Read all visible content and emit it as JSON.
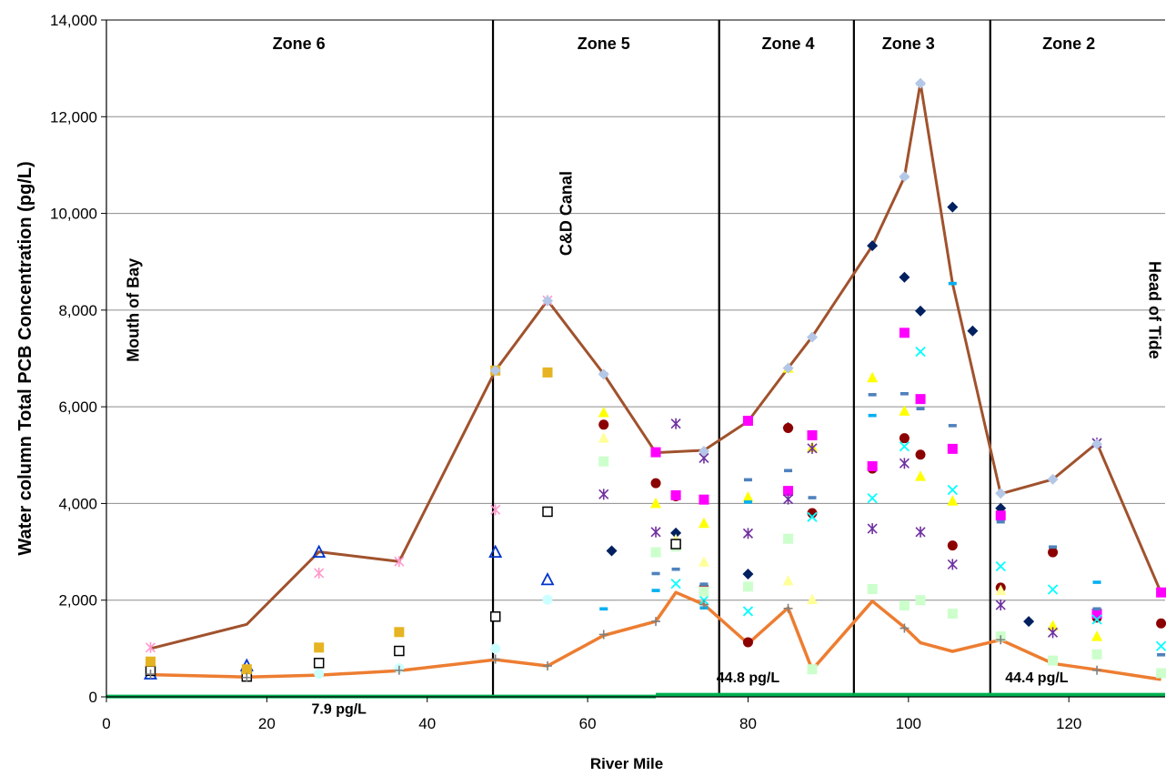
{
  "chart_data": {
    "type": "scatter",
    "xlabel": "River Mile",
    "ylabel": "Water column Total PCB Concentration (pg/L)",
    "xlim": [
      0,
      132
    ],
    "ylim": [
      0,
      14000
    ],
    "x_ticks": [
      "0",
      "20",
      "40",
      "60",
      "80",
      "100",
      "120"
    ],
    "x_tick_values": [
      0,
      20,
      40,
      60,
      80,
      100,
      120
    ],
    "y_ticks": [
      "0",
      "2,000",
      "4,000",
      "6,000",
      "8,000",
      "10,000",
      "12,000",
      "14,000"
    ],
    "y_tick_values": [
      0,
      2000,
      4000,
      6000,
      8000,
      10000,
      12000,
      14000
    ],
    "grid": "horizontal",
    "zones": [
      {
        "label": "Zone 6",
        "x": 24
      },
      {
        "label": "Zone 5",
        "x": 62
      },
      {
        "label": "Zone 4",
        "x": 85
      },
      {
        "label": "Zone 3",
        "x": 100
      },
      {
        "label": "Zone 2",
        "x": 120
      }
    ],
    "zone_boundaries": [
      48.2,
      76.4,
      93.2,
      110.2
    ],
    "annotations": [
      {
        "text": "Mouth of Bay",
        "x": 4,
        "y": 8000,
        "rotate": -90
      },
      {
        "text": "C&D Canal",
        "x": 58,
        "y": 10000,
        "rotate": -90
      },
      {
        "text": "Head of Tide",
        "x": 130,
        "y": 8000,
        "rotate": 90
      },
      {
        "text": "7.9 pg/L",
        "x": 29,
        "y": -350
      },
      {
        "text": "44.8 pg/L",
        "x": 80,
        "y": 300
      },
      {
        "text": "44.4 pg/L",
        "x": 116,
        "y": 300
      }
    ],
    "max_line": {
      "color": "#a0522d",
      "x": [
        5.5,
        17.5,
        26.5,
        36.5,
        48.5,
        55,
        62,
        68.5,
        74.5,
        80,
        85,
        88,
        95.5,
        99.5,
        101.5,
        105.5,
        111.5,
        118,
        123.5,
        131.5
      ],
      "values": [
        1000,
        1500,
        3000,
        2800,
        6750,
        8200,
        6680,
        5050,
        5100,
        5700,
        6800,
        7450,
        9330,
        10750,
        12700,
        8550,
        4200,
        4500,
        5250,
        2150
      ]
    },
    "min_line": {
      "color": "#ed7d31",
      "x": [
        5.5,
        17.5,
        26.5,
        36.5,
        48.5,
        55,
        62,
        68.5,
        71,
        74.5,
        80,
        85,
        88,
        95.5,
        99.5,
        101.5,
        105.5,
        111.5,
        118,
        123.5,
        131.5
      ],
      "values": [
        460,
        410,
        450,
        540,
        770,
        640,
        1270,
        1560,
        2160,
        1910,
        1100,
        1840,
        560,
        1980,
        1440,
        1120,
        940,
        1180,
        690,
        560,
        360
      ]
    },
    "criteria_line": {
      "color": "#00b050",
      "segments": [
        {
          "x": [
            0,
            68.5
          ],
          "values": [
            7.9,
            7.9
          ],
          "label": "7.9 pg/L"
        },
        {
          "x": [
            68.5,
            93.2
          ],
          "values": [
            44.8,
            44.8
          ],
          "label": "44.8 pg/L"
        },
        {
          "x": [
            93.2,
            132
          ],
          "values": [
            44.4,
            44.4
          ],
          "label": "44.4 pg/L"
        }
      ]
    },
    "series": [
      {
        "marker": "diamond",
        "color": "#002060",
        "points": [
          [
            63,
            3020
          ],
          [
            71,
            3390
          ],
          [
            80,
            2540
          ],
          [
            85,
            5570
          ],
          [
            95.5,
            9330
          ],
          [
            99.5,
            8680
          ],
          [
            101.5,
            7980
          ],
          [
            105.5,
            10130
          ],
          [
            108,
            7570
          ],
          [
            111.5,
            3900
          ],
          [
            115,
            1560
          ]
        ]
      },
      {
        "marker": "circle",
        "color": "#8b0000",
        "points": [
          [
            62,
            5630
          ],
          [
            68.5,
            4420
          ],
          [
            71,
            4150
          ],
          [
            74.5,
            2260
          ],
          [
            80,
            1130
          ],
          [
            85,
            5560
          ],
          [
            88,
            3800
          ],
          [
            95.5,
            4720
          ],
          [
            99.5,
            5350
          ],
          [
            101.5,
            5010
          ],
          [
            105.5,
            3130
          ],
          [
            111.5,
            2260
          ],
          [
            118,
            2990
          ],
          [
            123.5,
            1640
          ],
          [
            131.5,
            1520
          ]
        ]
      },
      {
        "marker": "square",
        "color": "#ff00ff",
        "points": [
          [
            68.5,
            5060
          ],
          [
            71,
            4170
          ],
          [
            74.5,
            4080
          ],
          [
            80,
            5710
          ],
          [
            85,
            4260
          ],
          [
            88,
            5410
          ],
          [
            95.5,
            4770
          ],
          [
            99.5,
            7530
          ],
          [
            101.5,
            6160
          ],
          [
            105.5,
            5130
          ],
          [
            111.5,
            3750
          ],
          [
            123.5,
            1720
          ],
          [
            131.5,
            2160
          ]
        ]
      },
      {
        "marker": "triangle",
        "color": "#ffff00",
        "points": [
          [
            62,
            5880
          ],
          [
            68.5,
            4000
          ],
          [
            71,
            3170
          ],
          [
            74.5,
            3590
          ],
          [
            80,
            4130
          ],
          [
            85,
            6800
          ],
          [
            88,
            5160
          ],
          [
            95.5,
            6600
          ],
          [
            99.5,
            5910
          ],
          [
            101.5,
            4560
          ],
          [
            105.5,
            4050
          ],
          [
            118,
            1470
          ],
          [
            123.5,
            1250
          ]
        ]
      },
      {
        "marker": "triangle",
        "color": "#ffff99",
        "points": [
          [
            62,
            5350
          ],
          [
            71,
            3250
          ],
          [
            74.5,
            2790
          ],
          [
            85,
            2400
          ],
          [
            88,
            2010
          ],
          [
            111.5,
            2200
          ]
        ]
      },
      {
        "marker": "star",
        "color": "#7030a0",
        "points": [
          [
            62,
            4190
          ],
          [
            68.5,
            3410
          ],
          [
            71,
            5650
          ],
          [
            74.5,
            4940
          ],
          [
            80,
            3380
          ],
          [
            85,
            4090
          ],
          [
            88,
            5140
          ],
          [
            95.5,
            3480
          ],
          [
            99.5,
            4830
          ],
          [
            101.5,
            3410
          ],
          [
            105.5,
            2740
          ],
          [
            111.5,
            1900
          ],
          [
            118,
            1330
          ],
          [
            123.5,
            5250
          ]
        ]
      },
      {
        "marker": "star",
        "color": "#ff99cc",
        "points": [
          [
            5.5,
            1020
          ],
          [
            26.5,
            2560
          ],
          [
            36.5,
            2800
          ],
          [
            48.5,
            3870
          ],
          [
            55,
            8200
          ]
        ]
      },
      {
        "marker": "x",
        "color": "#00ffff",
        "points": [
          [
            68.5,
            2990
          ],
          [
            71,
            2340
          ],
          [
            74.5,
            2000
          ],
          [
            80,
            1770
          ],
          [
            88,
            3720
          ],
          [
            95.5,
            4110
          ],
          [
            99.5,
            5180
          ],
          [
            101.5,
            7140
          ],
          [
            105.5,
            4280
          ],
          [
            111.5,
            2700
          ],
          [
            118,
            2220
          ],
          [
            123.5,
            1600
          ],
          [
            131.5,
            1050
          ]
        ]
      },
      {
        "marker": "square",
        "color": "#ccffcc",
        "points": [
          [
            62,
            4870
          ],
          [
            68.5,
            2990
          ],
          [
            71,
            3110
          ],
          [
            74.5,
            2180
          ],
          [
            80,
            2280
          ],
          [
            85,
            3270
          ],
          [
            88,
            570
          ],
          [
            95.5,
            2230
          ],
          [
            99.5,
            1890
          ],
          [
            101.5,
            2000
          ],
          [
            105.5,
            1720
          ],
          [
            111.5,
            1250
          ],
          [
            118,
            750
          ],
          [
            123.5,
            880
          ],
          [
            131.5,
            490
          ]
        ]
      },
      {
        "marker": "dash",
        "color": "#4f81bd",
        "points": [
          [
            62,
            6680
          ],
          [
            68.5,
            2550
          ],
          [
            71,
            2640
          ],
          [
            74.5,
            2330
          ],
          [
            80,
            4490
          ],
          [
            85,
            4680
          ],
          [
            88,
            4120
          ],
          [
            95.5,
            6250
          ],
          [
            99.5,
            6270
          ],
          [
            101.5,
            5960
          ],
          [
            105.5,
            5610
          ],
          [
            111.5,
            3620
          ],
          [
            118,
            3100
          ],
          [
            123.5,
            1820
          ],
          [
            131.5,
            870
          ]
        ]
      },
      {
        "marker": "dash",
        "color": "#00b0f0",
        "points": [
          [
            62,
            1820
          ],
          [
            68.5,
            2200
          ],
          [
            74.5,
            1840
          ],
          [
            80,
            4030
          ],
          [
            95.5,
            5820
          ],
          [
            99.5,
            10750
          ],
          [
            101.5,
            12680
          ],
          [
            105.5,
            8550
          ],
          [
            111.5,
            4210
          ],
          [
            123.5,
            2370
          ]
        ]
      },
      {
        "marker": "triangle-open",
        "color": "#0033cc",
        "points": [
          [
            5.5,
            470
          ],
          [
            17.5,
            640
          ],
          [
            26.5,
            2990
          ],
          [
            48.5,
            2990
          ],
          [
            55,
            2420
          ]
        ]
      },
      {
        "marker": "square-open",
        "color": "#000000",
        "points": [
          [
            5.5,
            540
          ],
          [
            17.5,
            420
          ],
          [
            26.5,
            700
          ],
          [
            36.5,
            950
          ],
          [
            48.5,
            1660
          ],
          [
            55,
            3830
          ],
          [
            71,
            3160
          ]
        ]
      },
      {
        "marker": "square",
        "color": "#e6b422",
        "points": [
          [
            5.5,
            730
          ],
          [
            17.5,
            570
          ],
          [
            26.5,
            1020
          ],
          [
            36.5,
            1340
          ],
          [
            48.5,
            6750
          ],
          [
            55,
            6710
          ]
        ]
      },
      {
        "marker": "diamond",
        "color": "#b4c7e7",
        "points": [
          [
            48.5,
            6750
          ],
          [
            55,
            8190
          ],
          [
            62,
            6670
          ],
          [
            74.5,
            5080
          ],
          [
            85,
            6800
          ],
          [
            88,
            7440
          ],
          [
            99.5,
            10760
          ],
          [
            101.5,
            12690
          ],
          [
            111.5,
            4210
          ],
          [
            118,
            4500
          ],
          [
            123.5,
            5230
          ]
        ]
      },
      {
        "marker": "circle",
        "color": "#ccffff",
        "points": [
          [
            26.5,
            480
          ],
          [
            36.5,
            590
          ],
          [
            48.5,
            1000
          ],
          [
            55,
            2010
          ]
        ]
      },
      {
        "marker": "plus",
        "color": "#808080",
        "points": [
          [
            5.5,
            470
          ],
          [
            17.5,
            400
          ],
          [
            36.5,
            550
          ],
          [
            48.5,
            780
          ],
          [
            55,
            640
          ],
          [
            62,
            1290
          ],
          [
            68.5,
            1560
          ],
          [
            74.5,
            1910
          ],
          [
            85,
            1830
          ],
          [
            99.5,
            1420
          ],
          [
            111.5,
            1180
          ],
          [
            123.5,
            550
          ]
        ]
      }
    ]
  }
}
